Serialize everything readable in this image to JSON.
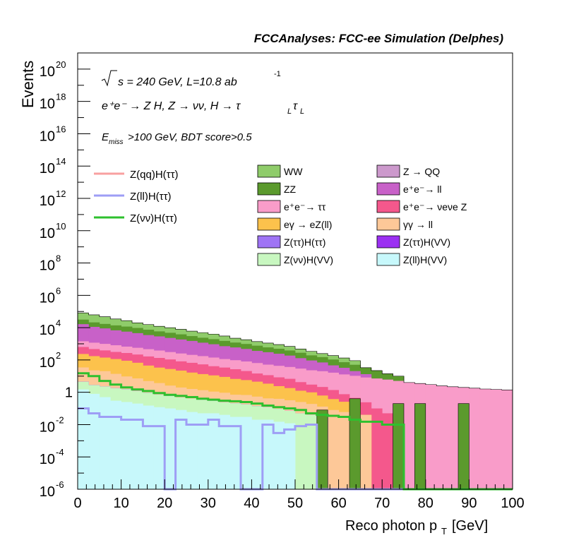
{
  "chart_data": {
    "type": "area",
    "title": "FCCAnalyses: FCC-ee Simulation (Delphes)",
    "xlabel": "Reco photon p",
    "xlabel_sub": "T",
    "xlabel_unit": "[GeV]",
    "ylabel": "Events",
    "xlim": [
      0,
      100
    ],
    "ylim": [
      1e-06,
      1e+21
    ],
    "ylog": true,
    "bin_width": 2.5,
    "x_ticks": [
      "0",
      "10",
      "20",
      "30",
      "40",
      "50",
      "60",
      "70",
      "80",
      "90",
      "100"
    ],
    "y_ticks": [
      {
        "base": "10",
        "exp": "-6",
        "v": 1e-06
      },
      {
        "base": "10",
        "exp": "-4",
        "v": 0.0001
      },
      {
        "base": "10",
        "exp": "-2",
        "v": 0.01
      },
      {
        "base": "1",
        "exp": "",
        "v": 1
      },
      {
        "base": "10",
        "exp": "2",
        "v": 100.0
      },
      {
        "base": "10",
        "exp": "4",
        "v": 10000.0
      },
      {
        "base": "10",
        "exp": "6",
        "v": 1000000.0
      },
      {
        "base": "10",
        "exp": "8",
        "v": 100000000.0
      },
      {
        "base": "10",
        "exp": "10",
        "v": 10000000000.0
      },
      {
        "base": "10",
        "exp": "12",
        "v": 1000000000000.0
      },
      {
        "base": "10",
        "exp": "14",
        "v": 100000000000000.0
      },
      {
        "base": "10",
        "exp": "16",
        "v": 1e+16
      },
      {
        "base": "10",
        "exp": "18",
        "v": 1e+18
      },
      {
        "base": "10",
        "exp": "20",
        "v": 1e+20
      }
    ],
    "annotations": {
      "energy": "s = 240 GeV, L=10.8 ab",
      "energy_sup": "-1",
      "process": "e⁺e⁻ → Z H, Z → νν, H → τ",
      "process_sub": "L",
      "cuts": "E",
      "cuts_sub": "miss",
      "cuts_rest": ">100 GeV, BDT score>0.5"
    },
    "legend_signal": [
      {
        "name": "Z(qq)H(ττ)",
        "color": "#f8a0a0"
      },
      {
        "name": "Z(ll)H(ττ)",
        "color": "#9e9ef5"
      },
      {
        "name": "Z(νν)H(ττ)",
        "color": "#2ec02e"
      }
    ],
    "legend_bkg": [
      {
        "name": "WW",
        "color": "#8fcc6a"
      },
      {
        "name": "Z → QQ",
        "color": "#cc99cc"
      },
      {
        "name": "ZZ",
        "color": "#5b9a2d"
      },
      {
        "name": "e⁺e⁻→ ll",
        "color": "#c861c8"
      },
      {
        "name": "e⁺e⁻→ ττ",
        "color": "#f99cc9"
      },
      {
        "name": "e⁺e⁻→ νeνe Z",
        "color": "#f4588c"
      },
      {
        "name": "eγ → eZ(ll)",
        "color": "#fcc24c"
      },
      {
        "name": "γγ → ll",
        "color": "#fdc898"
      },
      {
        "name": "Z(ττ)H(ττ)",
        "color": "#9f74f5"
      },
      {
        "name": "Z(ττ)H(VV)",
        "color": "#9b30f2"
      },
      {
        "name": "Z(νν)H(VV)",
        "color": "#c8f7c0"
      },
      {
        "name": "Z(ll)H(VV)",
        "color": "#c7f8fb"
      }
    ],
    "stack": [
      {
        "name": "Z(ll)H(VV)",
        "color": "#c7f8fb",
        "values": [
          1.5,
          0.8,
          0.5,
          0.3,
          0.25,
          0.2,
          0.15,
          0.12,
          0.1,
          0.08,
          0.06,
          0.05,
          0.05,
          0.04,
          0.03,
          0.03,
          0.02,
          0.02,
          0.015,
          0.012,
          0,
          0,
          0,
          0,
          0,
          0,
          0,
          0,
          0,
          0,
          0,
          0,
          0,
          0,
          0,
          0,
          0,
          0,
          0,
          0
        ]
      },
      {
        "name": "Z(νν)H(VV)",
        "color": "#c8f7c0",
        "values": [
          3,
          2,
          1.8,
          1.5,
          1.3,
          1,
          0.8,
          0.6,
          0.5,
          0.4,
          0.35,
          0.3,
          0.25,
          0.2,
          0.18,
          0.15,
          0.12,
          0.1,
          0.08,
          0.06,
          0.05,
          0.04,
          0.03,
          0,
          0,
          0,
          0,
          0,
          0,
          0,
          0,
          0,
          0,
          0,
          0,
          0,
          0,
          0,
          0,
          0
        ]
      },
      {
        "name": "Z(ττ)H(VV)",
        "color": "#9b30f2",
        "values": [
          0.02,
          0.015,
          0,
          0.01,
          0,
          0.008,
          0.006,
          0,
          0,
          0,
          0,
          0,
          0,
          0,
          0,
          0,
          0,
          0,
          0,
          0,
          0,
          0,
          0,
          0,
          0,
          0,
          0,
          0,
          0,
          0,
          0,
          0,
          0,
          0,
          0,
          0,
          0,
          0,
          0,
          0
        ]
      },
      {
        "name": "Z(ττ)H(ττ)",
        "color": "#9f74f5",
        "values": [
          0.02,
          0.01,
          0.005,
          0.003,
          0.002,
          0.002,
          0.001,
          0.001,
          0,
          0,
          0,
          0,
          0,
          0,
          0,
          0,
          0,
          0,
          0,
          0,
          0,
          0,
          0,
          0,
          0,
          0,
          0,
          0,
          0,
          0,
          0,
          0,
          0,
          0,
          0,
          0,
          0,
          0,
          0,
          0
        ]
      },
      {
        "name": "γγ → ll",
        "color": "#fdc898",
        "values": [
          30,
          20,
          18,
          12,
          8,
          6,
          4,
          3,
          2,
          1.5,
          1.2,
          1,
          0.8,
          0.7,
          0.5,
          0.5,
          0.4,
          0.3,
          0.3,
          0.25,
          0.2,
          0.15,
          0.1,
          0.08,
          0.06,
          0.05,
          0.04,
          0,
          0,
          0,
          0,
          0,
          0,
          0,
          0,
          0,
          0,
          0,
          0,
          0
        ]
      },
      {
        "name": "eγ → eZ(ll)",
        "color": "#fcc24c",
        "values": [
          200,
          150,
          120,
          100,
          80,
          60,
          40,
          30,
          25,
          20,
          15,
          12,
          10,
          8,
          6,
          5,
          4,
          3,
          2,
          1.5,
          1,
          0.8,
          0.5,
          0.3,
          0.2,
          0.1,
          0,
          0,
          0,
          0,
          0,
          0,
          0,
          0,
          0,
          0,
          0,
          0,
          0,
          0
        ]
      },
      {
        "name": "e⁺e⁻→ νeνe Z",
        "color": "#f4588c",
        "values": [
          400,
          300,
          250,
          200,
          180,
          150,
          120,
          100,
          80,
          60,
          50,
          40,
          30,
          25,
          20,
          15,
          10,
          8,
          6,
          5,
          3,
          2,
          1.5,
          1,
          0.5,
          0.3,
          0.2,
          0.1,
          0.05,
          0.02,
          0,
          0,
          0,
          0,
          0,
          0,
          0,
          0,
          0,
          0
        ]
      },
      {
        "name": "e⁺e⁻→ ττ",
        "color": "#f99cc9",
        "values": [
          800,
          700,
          600,
          500,
          400,
          350,
          300,
          250,
          200,
          170,
          140,
          120,
          100,
          80,
          70,
          60,
          50,
          40,
          35,
          30,
          25,
          20,
          18,
          15,
          12,
          10,
          8,
          7,
          6,
          5,
          4,
          3.5,
          3,
          2.5,
          2.2,
          2,
          1.8,
          1.6,
          1.5,
          1.4
        ]
      },
      {
        "name": "e⁺e⁻→ ll",
        "color": "#c861c8",
        "values": [
          15000,
          10000,
          8000,
          6000,
          5000,
          4000,
          3000,
          2500,
          2000,
          1600,
          1300,
          1000,
          800,
          600,
          500,
          400,
          300,
          250,
          200,
          150,
          100,
          70,
          50,
          30,
          20,
          10,
          5,
          0,
          0,
          0,
          0,
          0,
          0,
          0,
          0,
          0,
          0,
          0,
          0,
          0
        ]
      },
      {
        "name": "ZZ",
        "color": "#5b9a2d",
        "values": [
          15000,
          10000,
          8000,
          7000,
          6000,
          5000,
          4000,
          3000,
          2500,
          2000,
          1500,
          1200,
          1000,
          800,
          600,
          500,
          400,
          300,
          250,
          200,
          150,
          100,
          80,
          60,
          40,
          30,
          20,
          15,
          8,
          5,
          0,
          0,
          0,
          0,
          0,
          0,
          0,
          0,
          0,
          0
        ]
      },
      {
        "name": "WW",
        "color": "#8fcc6a",
        "values": [
          50000,
          40000,
          30000,
          20000,
          15000,
          10000,
          8000,
          6000,
          5000,
          4000,
          3000,
          2500,
          2000,
          1500,
          1000,
          800,
          600,
          500,
          400,
          300,
          200,
          150,
          100,
          80,
          60,
          40,
          0,
          0,
          0,
          0,
          0,
          0,
          0,
          0,
          0,
          0,
          0,
          0,
          0,
          0
        ]
      },
      {
        "name": "Z → QQ",
        "color": "#cc99cc",
        "values": [
          1000,
          800,
          600,
          500,
          400,
          300,
          250,
          200,
          150,
          100,
          80,
          60,
          50,
          40,
          30,
          20,
          15,
          10,
          8,
          6,
          0,
          0,
          0,
          0,
          0,
          0,
          0,
          0,
          0,
          0,
          0,
          0,
          0,
          0,
          0,
          0,
          0,
          0,
          0,
          0
        ]
      }
    ],
    "signal_lines": [
      {
        "name": "Z(qq)H(ττ)",
        "color": "#f8a0a0",
        "values": []
      },
      {
        "name": "Z(ll)H(ττ)",
        "color": "#9e9ef5",
        "values": [
          0.1,
          0.05,
          0.03,
          0.03,
          0.02,
          0.02,
          0.008,
          0.008,
          1e-07,
          0.02,
          0.01,
          0.01,
          0.02,
          0.008,
          0.008,
          1e-07,
          1e-07,
          0.01,
          0.003,
          0.005,
          0.008,
          0.01,
          1e-07,
          1e-07,
          0,
          0,
          0,
          0,
          0,
          0,
          0,
          0,
          0,
          0,
          0,
          0,
          0,
          0,
          0,
          0
        ]
      },
      {
        "name": "Z(νν)H(ττ)",
        "color": "#2ec02e",
        "values": [
          15,
          10,
          5,
          3,
          2,
          1.5,
          1.2,
          0.9,
          0.7,
          0.6,
          0.5,
          0.4,
          0.35,
          0.3,
          0.28,
          0.25,
          0.2,
          0.15,
          0.12,
          0.1,
          0.08,
          0.05,
          0.04,
          0.035,
          0.03,
          0.02,
          0.015,
          0.015,
          0.01,
          0.01,
          0,
          0,
          0,
          0,
          0,
          0,
          0,
          0,
          0,
          0
        ]
      }
    ],
    "spikes": [
      {
        "color": "#5b9a2d",
        "x0": 55,
        "x1": 57.5,
        "v": 0.08
      },
      {
        "color": "#5b9a2d",
        "x0": 62.5,
        "x1": 65,
        "v": 0.4
      },
      {
        "color": "#5b9a2d",
        "x0": 72.5,
        "x1": 75,
        "v": 0.2
      },
      {
        "color": "#5b9a2d",
        "x0": 77.5,
        "x1": 80,
        "v": 0.2
      },
      {
        "color": "#5b9a2d",
        "x0": 87.5,
        "x1": 90,
        "v": 0.2
      }
    ]
  }
}
